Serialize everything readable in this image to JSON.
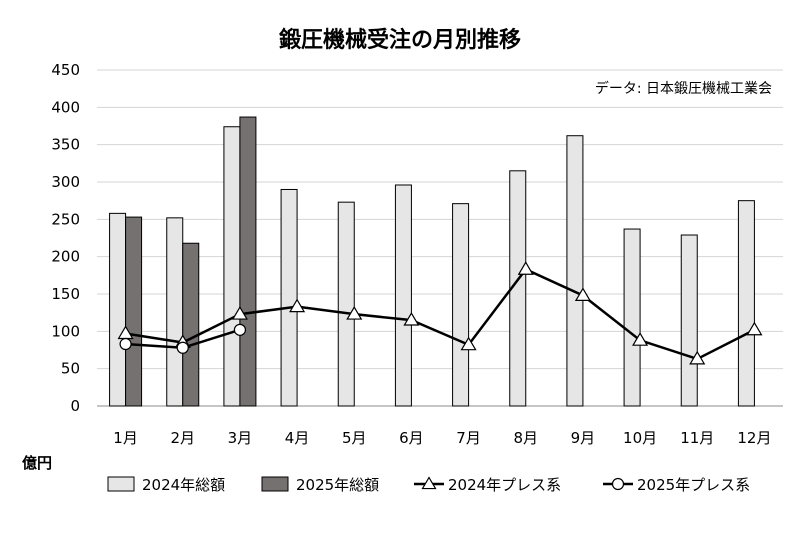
{
  "chart_data": {
    "type": "bar",
    "title": "鍛圧機械受注の月別推移",
    "source_note": "データ: 日本鍛圧機械工業会",
    "ylabel": "億円",
    "xlabel": "",
    "categories": [
      "1月",
      "2月",
      "3月",
      "4月",
      "5月",
      "6月",
      "7月",
      "8月",
      "9月",
      "10月",
      "11月",
      "12月"
    ],
    "ylim": [
      0,
      450
    ],
    "yticks": [
      0,
      50,
      100,
      150,
      200,
      250,
      300,
      350,
      400,
      450
    ],
    "grid": true,
    "legend_position": "bottom",
    "series": [
      {
        "name": "2024年総額",
        "kind": "bar",
        "color": "#e6e6e6",
        "values": [
          258,
          252,
          374,
          290,
          273,
          296,
          271,
          315,
          362,
          237,
          229,
          275
        ]
      },
      {
        "name": "2025年総額",
        "kind": "bar",
        "color": "#767171",
        "values": [
          253,
          218,
          387,
          null,
          null,
          null,
          null,
          null,
          null,
          null,
          null,
          null
        ]
      },
      {
        "name": "2024年プレス系",
        "kind": "line",
        "marker": "triangle",
        "color": "#000000",
        "values": [
          97,
          85,
          123,
          133,
          123,
          115,
          82,
          183,
          148,
          88,
          63,
          102
        ]
      },
      {
        "name": "2025年プレス系",
        "kind": "line",
        "marker": "circle",
        "color": "#000000",
        "values": [
          83,
          78,
          102,
          null,
          null,
          null,
          null,
          null,
          null,
          null,
          null,
          null
        ]
      }
    ]
  }
}
